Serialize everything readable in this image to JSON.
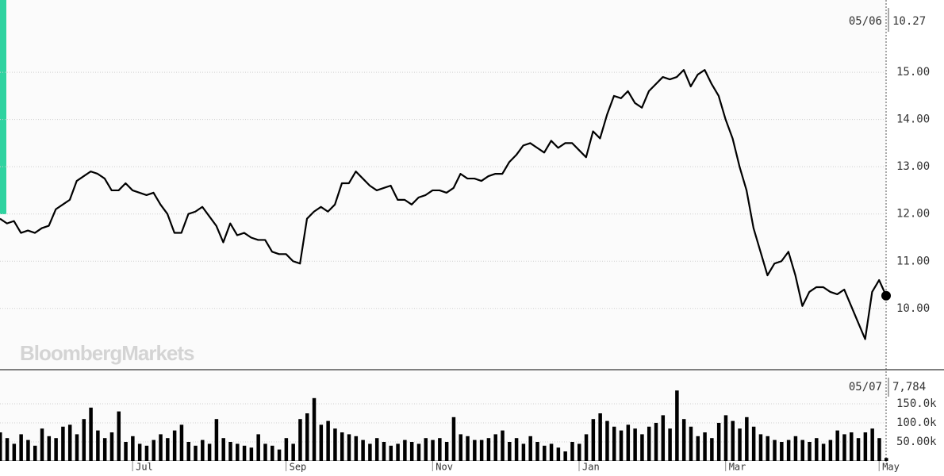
{
  "watermark": "BloombergMarkets",
  "chart_data": [
    {
      "type": "line",
      "color": "#000000",
      "last_date": "05/06",
      "ylim": [
        8.72,
        16.53
      ],
      "yticks": [
        {
          "value": 10,
          "label": "10.00"
        },
        {
          "value": 11,
          "label": "11.00"
        },
        {
          "value": 12,
          "label": "12.00"
        },
        {
          "value": 13,
          "label": "13.00"
        },
        {
          "value": 14,
          "label": "14.00"
        },
        {
          "value": 15,
          "label": "15.00"
        }
      ],
      "grid": true,
      "values": [
        11.9,
        11.8,
        11.85,
        11.6,
        11.65,
        11.6,
        11.7,
        11.75,
        12.1,
        12.2,
        12.3,
        12.7,
        12.8,
        12.9,
        12.85,
        12.75,
        12.5,
        12.5,
        12.65,
        12.5,
        12.45,
        12.4,
        12.45,
        12.2,
        12.0,
        11.6,
        11.6,
        12.0,
        12.05,
        12.15,
        11.95,
        11.75,
        11.4,
        11.8,
        11.55,
        11.6,
        11.5,
        11.45,
        11.45,
        11.2,
        11.15,
        11.15,
        11.0,
        10.95,
        11.9,
        12.05,
        12.15,
        12.05,
        12.2,
        12.65,
        12.65,
        12.9,
        12.75,
        12.6,
        12.5,
        12.55,
        12.6,
        12.3,
        12.3,
        12.2,
        12.35,
        12.4,
        12.5,
        12.5,
        12.45,
        12.55,
        12.85,
        12.75,
        12.75,
        12.7,
        12.8,
        12.85,
        12.85,
        13.1,
        13.25,
        13.45,
        13.5,
        13.4,
        13.3,
        13.55,
        13.4,
        13.5,
        13.5,
        13.35,
        13.2,
        13.75,
        13.6,
        14.1,
        14.5,
        14.45,
        14.6,
        14.35,
        14.25,
        14.6,
        14.75,
        14.9,
        14.85,
        14.9,
        15.05,
        14.7,
        14.95,
        15.05,
        14.75,
        14.5,
        14.0,
        13.6,
        13.0,
        12.5,
        11.7,
        11.2,
        10.7,
        10.95,
        11.0,
        11.2,
        10.7,
        10.05,
        10.35,
        10.45,
        10.45,
        10.35,
        10.3,
        10.4,
        10.05,
        9.7,
        9.35,
        10.35,
        10.6,
        10.27
      ]
    },
    {
      "type": "bar",
      "color": "#000000",
      "last_date": "05/07",
      "last_volume": {
        "value": 7784,
        "label": "7,784"
      },
      "ylim": [
        0,
        237500
      ],
      "yticks": [
        {
          "value": 50000,
          "label": "50.00k"
        },
        {
          "value": 100000,
          "label": "100.0k"
        },
        {
          "value": 150000,
          "label": "150.0k"
        }
      ],
      "grid": true,
      "categories": [
        null,
        null,
        null,
        null,
        null,
        null,
        null,
        null,
        null,
        null,
        null,
        null,
        null,
        null,
        null,
        null,
        null,
        null,
        null,
        "Jul",
        null,
        null,
        null,
        null,
        null,
        null,
        null,
        null,
        null,
        null,
        null,
        null,
        null,
        null,
        null,
        null,
        null,
        null,
        null,
        null,
        null,
        "Sep",
        null,
        null,
        null,
        null,
        null,
        null,
        null,
        null,
        null,
        null,
        null,
        null,
        null,
        null,
        null,
        null,
        null,
        null,
        null,
        null,
        "Nov",
        null,
        null,
        null,
        null,
        null,
        null,
        null,
        null,
        null,
        null,
        null,
        null,
        null,
        null,
        null,
        null,
        null,
        null,
        null,
        null,
        "Jan",
        null,
        null,
        null,
        null,
        null,
        null,
        null,
        null,
        null,
        null,
        null,
        null,
        null,
        null,
        null,
        null,
        null,
        null,
        null,
        null,
        "Mar",
        null,
        null,
        null,
        null,
        null,
        null,
        null,
        null,
        null,
        null,
        null,
        null,
        null,
        null,
        null,
        null,
        null,
        null,
        null,
        null,
        null,
        "May",
        null
      ],
      "values": [
        75000,
        60000,
        45000,
        70000,
        55000,
        40000,
        85000,
        65000,
        60000,
        90000,
        95000,
        70000,
        110000,
        140000,
        80000,
        60000,
        75000,
        130000,
        50000,
        65000,
        45000,
        40000,
        55000,
        70000,
        60000,
        80000,
        95000,
        50000,
        40000,
        55000,
        45000,
        110000,
        60000,
        50000,
        45000,
        40000,
        35000,
        70000,
        45000,
        40000,
        30000,
        60000,
        45000,
        110000,
        125000,
        165000,
        95000,
        105000,
        85000,
        75000,
        70000,
        65000,
        55000,
        45000,
        60000,
        50000,
        40000,
        45000,
        55000,
        50000,
        45000,
        60000,
        55000,
        60000,
        50000,
        115000,
        70000,
        65000,
        55000,
        55000,
        60000,
        70000,
        80000,
        50000,
        60000,
        45000,
        65000,
        50000,
        40000,
        45000,
        35000,
        25000,
        50000,
        45000,
        70000,
        110000,
        125000,
        105000,
        90000,
        80000,
        95000,
        85000,
        70000,
        90000,
        100000,
        120000,
        85000,
        185000,
        110000,
        90000,
        65000,
        75000,
        60000,
        100000,
        120000,
        105000,
        85000,
        115000,
        90000,
        70000,
        65000,
        55000,
        50000,
        55000,
        65000,
        55000,
        50000,
        60000,
        45000,
        55000,
        80000,
        70000,
        75000,
        60000,
        75000,
        85000,
        60000,
        7784
      ]
    }
  ]
}
